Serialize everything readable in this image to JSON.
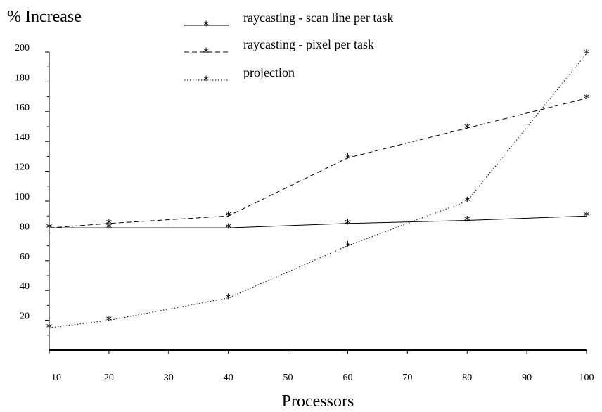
{
  "chart_data": {
    "type": "line",
    "ylabel": "% Increase",
    "xlabel": "Processors",
    "xlim": [
      10,
      100
    ],
    "ylim": [
      0,
      200
    ],
    "x_ticks": [
      10,
      20,
      30,
      40,
      50,
      60,
      70,
      80,
      90,
      100
    ],
    "y_tick_labels": [
      20,
      40,
      60,
      80,
      100,
      120,
      140,
      160,
      180,
      200
    ],
    "grid": false,
    "legend_position": "top",
    "series": [
      {
        "name": "raycasting - scan line per task",
        "style": "solid",
        "points": [
          [
            10,
            82
          ],
          [
            20,
            82
          ],
          [
            40,
            82
          ],
          [
            60,
            85
          ],
          [
            80,
            87
          ],
          [
            100,
            90
          ]
        ]
      },
      {
        "name": "raycasting - pixel per task",
        "style": "dashed",
        "points": [
          [
            10,
            82
          ],
          [
            20,
            85
          ],
          [
            40,
            90
          ],
          [
            60,
            129
          ],
          [
            80,
            149
          ],
          [
            100,
            169
          ]
        ]
      },
      {
        "name": "projection",
        "style": "dotted",
        "points": [
          [
            10,
            15
          ],
          [
            20,
            20
          ],
          [
            40,
            35
          ],
          [
            60,
            70
          ],
          [
            80,
            100
          ],
          [
            100,
            199
          ]
        ]
      }
    ]
  }
}
